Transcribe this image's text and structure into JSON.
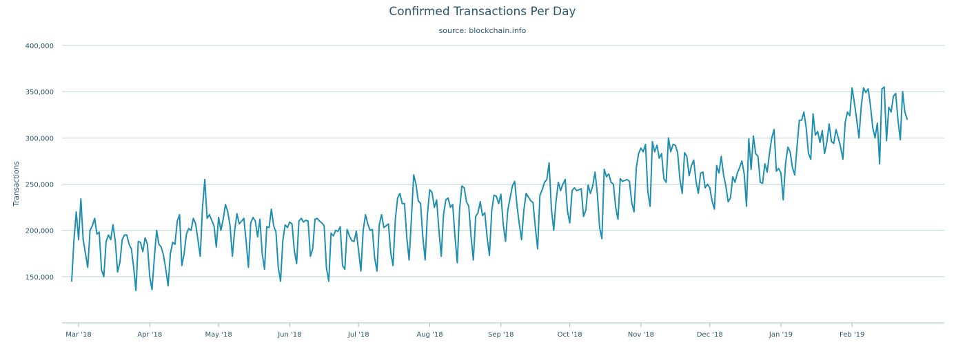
{
  "chart_data": {
    "type": "line",
    "title": "Confirmed Transactions Per Day",
    "subtitle": "source: blockchain.info",
    "xlabel": "",
    "ylabel": "Transactions",
    "ylim": [
      100000,
      400000
    ],
    "y_ticks": [
      150000,
      200000,
      250000,
      300000,
      350000,
      400000
    ],
    "y_tick_labels": [
      "150,000",
      "200,000",
      "250,000",
      "300,000",
      "350,000",
      "400,000"
    ],
    "x_start": "2018-02-26",
    "x_ticks": [
      {
        "date": "2018-03-01",
        "label": "Mar '18"
      },
      {
        "date": "2018-04-01",
        "label": "Apr '18"
      },
      {
        "date": "2018-05-01",
        "label": "May '18"
      },
      {
        "date": "2018-06-01",
        "label": "Jun '18"
      },
      {
        "date": "2018-07-01",
        "label": "Jul '18"
      },
      {
        "date": "2018-08-01",
        "label": "Aug '18"
      },
      {
        "date": "2018-09-01",
        "label": "Sep '18"
      },
      {
        "date": "2018-10-01",
        "label": "Oct '18"
      },
      {
        "date": "2018-11-01",
        "label": "Nov '18"
      },
      {
        "date": "2018-12-01",
        "label": "Dec '18"
      },
      {
        "date": "2019-01-01",
        "label": "Jan '19"
      },
      {
        "date": "2019-02-01",
        "label": "Feb '19"
      }
    ],
    "grid": true,
    "legend": "none",
    "color": "#1e8fb0",
    "series": [
      {
        "values": [
          145000,
          190000,
          220000,
          190000,
          234000,
          190000,
          175000,
          160000,
          200000,
          205000,
          213000,
          196000,
          198000,
          157000,
          150000,
          188000,
          195000,
          190000,
          206000,
          188000,
          155000,
          165000,
          190000,
          195000,
          195000,
          185000,
          180000,
          160000,
          135000,
          188000,
          187000,
          177000,
          192000,
          185000,
          150000,
          136000,
          170000,
          200000,
          185000,
          182000,
          173000,
          158000,
          140000,
          175000,
          187000,
          185000,
          210000,
          217000,
          162000,
          175000,
          196000,
          202000,
          200000,
          213000,
          207000,
          190000,
          172000,
          225000,
          255000,
          213000,
          217000,
          211000,
          205000,
          182000,
          214000,
          200000,
          212000,
          228000,
          220000,
          205000,
          172000,
          200000,
          218000,
          207000,
          210000,
          213000,
          188000,
          160000,
          208000,
          214000,
          210000,
          193000,
          212000,
          175000,
          158000,
          204000,
          203000,
          223000,
          205000,
          198000,
          160000,
          145000,
          189000,
          206000,
          203000,
          209000,
          207000,
          178000,
          164000,
          210000,
          213000,
          209000,
          211000,
          210000,
          172000,
          180000,
          212000,
          213000,
          210000,
          208000,
          205000,
          159000,
          145000,
          197000,
          194000,
          200000,
          199000,
          204000,
          162000,
          158000,
          201000,
          194000,
          189000,
          188000,
          199000,
          178000,
          156000,
          200000,
          217000,
          207000,
          200000,
          201000,
          170000,
          156000,
          206000,
          217000,
          203000,
          205000,
          207000,
          176000,
          162000,
          212000,
          235000,
          240000,
          229000,
          229000,
          192000,
          168000,
          212000,
          260000,
          250000,
          232000,
          229000,
          192000,
          168000,
          218000,
          244000,
          241000,
          225000,
          233000,
          200000,
          172000,
          217000,
          233000,
          235000,
          225000,
          228000,
          193000,
          165000,
          223000,
          248000,
          246000,
          231000,
          226000,
          193000,
          168000,
          215000,
          219000,
          231000,
          216000,
          219000,
          192000,
          173000,
          221000,
          238000,
          237000,
          229000,
          239000,
          207000,
          188000,
          222000,
          235000,
          248000,
          253000,
          227000,
          207000,
          190000,
          222000,
          240000,
          236000,
          232000,
          230000,
          203000,
          180000,
          238000,
          244000,
          252000,
          255000,
          273000,
          223000,
          200000,
          231000,
          252000,
          243000,
          250000,
          255000,
          221000,
          208000,
          243000,
          246000,
          243000,
          244000,
          245000,
          215000,
          222000,
          249000,
          240000,
          248000,
          263000,
          240000,
          203000,
          191000,
          266000,
          258000,
          261000,
          252000,
          250000,
          225000,
          212000,
          256000,
          253000,
          254000,
          255000,
          253000,
          230000,
          220000,
          268000,
          283000,
          289000,
          285000,
          293000,
          242000,
          226000,
          296000,
          285000,
          292000,
          278000,
          283000,
          256000,
          252000,
          300000,
          285000,
          293000,
          292000,
          284000,
          255000,
          240000,
          284000,
          280000,
          259000,
          270000,
          276000,
          253000,
          240000,
          262000,
          263000,
          246000,
          250000,
          246000,
          232000,
          223000,
          270000,
          262000,
          280000,
          260000,
          248000,
          231000,
          235000,
          258000,
          252000,
          262000,
          268000,
          275000,
          261000,
          226000,
          299000,
          266000,
          302000,
          283000,
          280000,
          252000,
          251000,
          272000,
          263000,
          283000,
          300000,
          309000,
          264000,
          267000,
          262000,
          233000,
          272000,
          290000,
          285000,
          268000,
          260000,
          290000,
          319000,
          319000,
          328000,
          311000,
          283000,
          277000,
          326000,
          303000,
          307000,
          295000,
          308000,
          283000,
          295000,
          315000,
          296000,
          294000,
          309000,
          300000,
          290000,
          277000,
          317000,
          328000,
          324000,
          354000,
          338000,
          320000,
          300000,
          335000,
          354000,
          349000,
          353000,
          335000,
          311000,
          300000,
          316000,
          272000,
          353000,
          355000,
          297000,
          333000,
          328000,
          345000,
          348000,
          319000,
          298000,
          350000,
          328000,
          320000
        ]
      }
    ]
  }
}
